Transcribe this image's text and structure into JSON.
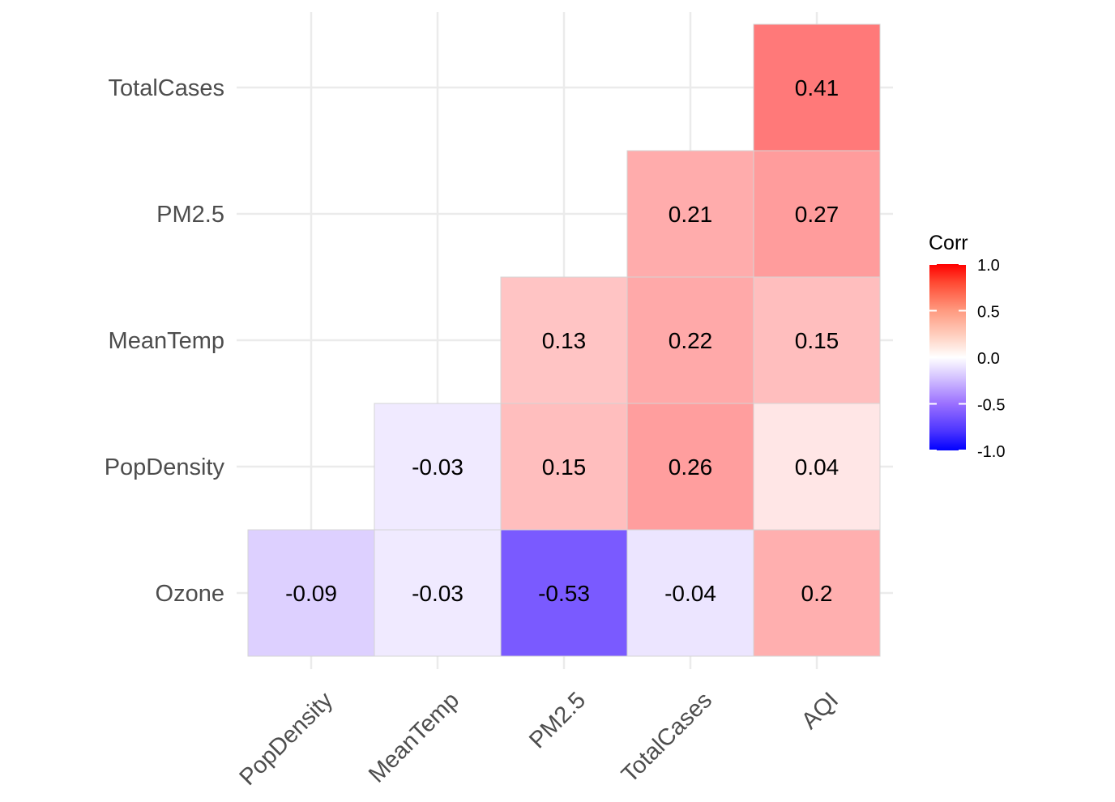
{
  "chart_data": {
    "type": "heatmap",
    "title": "",
    "xlabel": "",
    "ylabel": "",
    "x_categories": [
      "PopDensity",
      "MeanTemp",
      "PM2.5",
      "TotalCases",
      "AQI"
    ],
    "y_categories": [
      "Ozone",
      "PopDensity",
      "MeanTemp",
      "PM2.5",
      "TotalCases"
    ],
    "cells": [
      {
        "x": "PopDensity",
        "y": "Ozone",
        "value": -0.09,
        "label": "-0.09"
      },
      {
        "x": "MeanTemp",
        "y": "Ozone",
        "value": -0.03,
        "label": "-0.03"
      },
      {
        "x": "PM2.5",
        "y": "Ozone",
        "value": -0.53,
        "label": "-0.53"
      },
      {
        "x": "TotalCases",
        "y": "Ozone",
        "value": -0.04,
        "label": "-0.04"
      },
      {
        "x": "AQI",
        "y": "Ozone",
        "value": 0.2,
        "label": "0.2"
      },
      {
        "x": "MeanTemp",
        "y": "PopDensity",
        "value": -0.03,
        "label": "-0.03"
      },
      {
        "x": "PM2.5",
        "y": "PopDensity",
        "value": 0.15,
        "label": "0.15"
      },
      {
        "x": "TotalCases",
        "y": "PopDensity",
        "value": 0.26,
        "label": "0.26"
      },
      {
        "x": "AQI",
        "y": "PopDensity",
        "value": 0.04,
        "label": "0.04"
      },
      {
        "x": "PM2.5",
        "y": "MeanTemp",
        "value": 0.13,
        "label": "0.13"
      },
      {
        "x": "TotalCases",
        "y": "MeanTemp",
        "value": 0.22,
        "label": "0.22"
      },
      {
        "x": "AQI",
        "y": "MeanTemp",
        "value": 0.15,
        "label": "0.15"
      },
      {
        "x": "TotalCases",
        "y": "PM2.5",
        "value": 0.21,
        "label": "0.21"
      },
      {
        "x": "AQI",
        "y": "PM2.5",
        "value": 0.27,
        "label": "0.27"
      },
      {
        "x": "AQI",
        "y": "TotalCases",
        "value": 0.41,
        "label": "0.41"
      }
    ],
    "color_scale": {
      "low": "#0000ff",
      "mid": "#ffffff",
      "high": "#ff0000",
      "limits": [
        -1,
        1
      ]
    },
    "legend": {
      "title": "Corr",
      "ticks": [
        {
          "value": 1.0,
          "label": "1.0"
        },
        {
          "value": 0.5,
          "label": "0.5"
        },
        {
          "value": 0.0,
          "label": "0.0"
        },
        {
          "value": -0.5,
          "label": "-0.5"
        },
        {
          "value": -1.0,
          "label": "-1.0"
        }
      ],
      "position": "right"
    },
    "grid": true
  }
}
